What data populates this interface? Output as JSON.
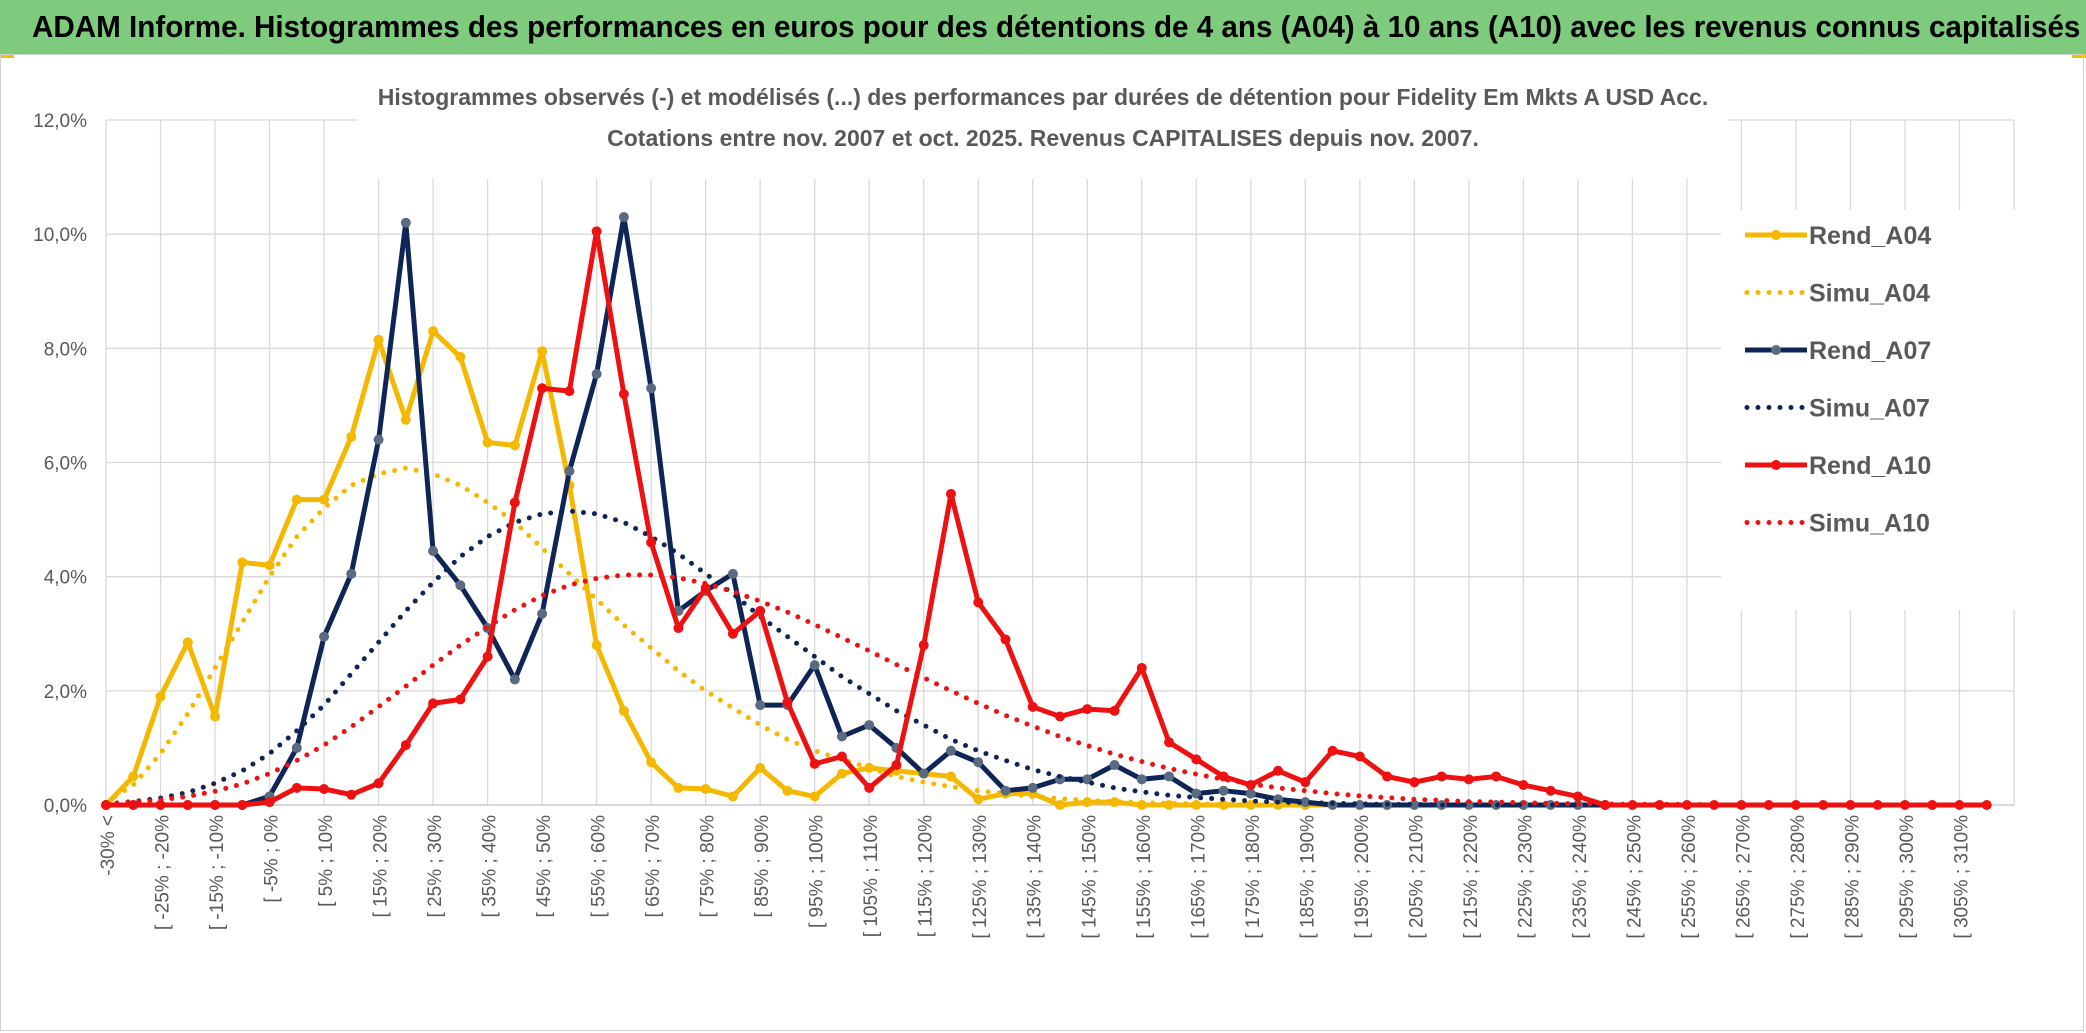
{
  "banner": {
    "title": "ADAM Informe. Histogrammes des performances en euros pour des détentions de 4 ans (A04) à 10 ans (A10) avec les revenus connus capitalisés",
    "color": "#7ecb7e"
  },
  "chart_data": {
    "type": "line",
    "title_line1": "Histogrammes observés (-) et modélisés (...) des performances par durées de détention pour Fidelity Em Mkts A USD Acc.",
    "title_line2": "Cotations entre nov. 2007 et oct. 2025. Revenus CAPITALISES depuis nov. 2007.",
    "ylim": [
      0,
      12
    ],
    "yticks": [
      "0,0%",
      "2,0%",
      "4,0%",
      "6,0%",
      "8,0%",
      "10,0%",
      "12,0%"
    ],
    "grid": true,
    "legend_position": "right",
    "x_labels": [
      "-30% <",
      "[ -25% ; -20%",
      "[ -15% ; -10%",
      "[ -5% ; 0%",
      "[ 5% ; 10%",
      "[ 15% ; 20%",
      "[ 25% ; 30%",
      "[ 35% ; 40%",
      "[ 45% ; 50%",
      "[ 55% ; 60%",
      "[ 65% ; 70%",
      "[ 75% ; 80%",
      "[ 85% ; 90%",
      "[ 95% ; 100%",
      "[ 105% ; 110%",
      "[ 115% ; 120%",
      "[ 125% ; 130%",
      "[ 135% ; 140%",
      "[ 145% ; 150%",
      "[ 155% ; 160%",
      "[ 165% ; 170%",
      "[ 175% ; 180%",
      "[ 185% ; 190%",
      "[ 195% ; 200%",
      "[ 205% ; 210%",
      "[ 215% ; 220%",
      "[ 225% ; 230%",
      "[ 235% ; 240%",
      "[ 245% ; 250%",
      "[ 255% ; 260%",
      "[ 265% ; 270%",
      "[ 275% ; 280%",
      "[ 285% ; 290%",
      "[ 295% ; 300%",
      "[ 305% ; 310%"
    ],
    "series": [
      {
        "name": "Rend_A04",
        "style": "solid",
        "color": "#f5b800",
        "values": [
          0.0,
          0.5,
          1.9,
          2.85,
          1.55,
          4.25,
          4.2,
          5.35,
          5.35,
          6.45,
          8.15,
          6.75,
          8.3,
          7.85,
          6.35,
          6.3,
          7.95,
          5.6,
          2.8,
          1.65,
          0.75,
          0.3,
          0.28,
          0.15,
          0.65,
          0.25,
          0.15,
          0.55,
          0.65,
          0.6,
          0.55,
          0.5,
          0.1,
          0.2,
          0.2,
          0.0,
          0.05,
          0.05,
          0.0,
          0.0,
          0.0,
          0.0,
          0.0,
          0.0,
          0.0,
          0.0,
          0.0,
          0.0
        ]
      },
      {
        "name": "Simu_A04",
        "style": "dotted",
        "color": "#f5b800",
        "values": [
          0.05,
          0.35,
          0.9,
          1.6,
          2.4,
          3.2,
          4.0,
          4.7,
          5.2,
          5.6,
          5.8,
          5.9,
          5.8,
          5.6,
          5.3,
          4.95,
          4.5,
          4.05,
          3.6,
          3.15,
          2.75,
          2.35,
          2.0,
          1.7,
          1.4,
          1.15,
          0.95,
          0.8,
          0.65,
          0.5,
          0.4,
          0.32,
          0.25,
          0.2,
          0.15,
          0.11,
          0.08,
          0.06,
          0.04,
          0.03,
          0.02,
          0.01,
          0.0,
          0.0,
          0.0,
          0.0,
          0.0,
          0.0,
          0.0,
          0.0,
          0.0,
          0.0
        ]
      },
      {
        "name": "Rend_A07",
        "style": "solid",
        "color": "#0f2557",
        "values": [
          0.0,
          0.0,
          0.0,
          0.0,
          0.0,
          0.0,
          0.15,
          1.0,
          2.95,
          4.05,
          6.4,
          10.2,
          4.45,
          3.85,
          3.1,
          2.2,
          3.35,
          5.85,
          7.55,
          10.3,
          7.3,
          3.4,
          3.75,
          4.05,
          1.75,
          1.75,
          2.45,
          1.2,
          1.4,
          1.0,
          0.55,
          0.95,
          0.75,
          0.25,
          0.3,
          0.45,
          0.45,
          0.7,
          0.45,
          0.5,
          0.2,
          0.25,
          0.2,
          0.1,
          0.05,
          0.0,
          0.0,
          0.0,
          0.0,
          0.0,
          0.0,
          0.0,
          0.0,
          0.0,
          0.0,
          0.0
        ]
      },
      {
        "name": "Simu_A07",
        "style": "dotted",
        "color": "#0f2557",
        "values": [
          0.02,
          0.06,
          0.12,
          0.22,
          0.38,
          0.6,
          0.9,
          1.3,
          1.75,
          2.3,
          2.85,
          3.4,
          3.9,
          4.35,
          4.7,
          4.95,
          5.1,
          5.15,
          5.1,
          4.95,
          4.7,
          4.4,
          4.05,
          3.7,
          3.3,
          2.95,
          2.6,
          2.25,
          1.95,
          1.65,
          1.4,
          1.15,
          0.95,
          0.78,
          0.62,
          0.5,
          0.4,
          0.3,
          0.23,
          0.17,
          0.13,
          0.1,
          0.07,
          0.05,
          0.04,
          0.03,
          0.02,
          0.01,
          0.01,
          0.0,
          0.0,
          0.0,
          0.0,
          0.0,
          0.0,
          0.0,
          0.0,
          0.0,
          0.0,
          0.0,
          0.0,
          0.0,
          0.0,
          0.0,
          0.0,
          0.0,
          0.0,
          0.0,
          0.0,
          0.0
        ]
      },
      {
        "name": "Rend_A10",
        "style": "solid",
        "color": "#ee1111",
        "values": [
          0.0,
          0.0,
          0.0,
          0.0,
          0.0,
          0.0,
          0.05,
          0.3,
          0.28,
          0.18,
          0.38,
          1.05,
          1.78,
          1.85,
          2.6,
          5.3,
          7.3,
          7.25,
          10.05,
          7.2,
          4.6,
          3.1,
          3.8,
          3.0,
          3.4,
          1.8,
          0.72,
          0.85,
          0.3,
          0.7,
          2.8,
          5.45,
          3.55,
          2.9,
          1.72,
          1.55,
          1.68,
          1.65,
          2.4,
          1.1,
          0.8,
          0.5,
          0.35,
          0.6,
          0.4,
          0.95,
          0.85,
          0.5,
          0.4,
          0.5,
          0.45,
          0.5,
          0.35,
          0.25,
          0.15,
          0.0,
          0.0,
          0.0,
          0.0,
          0.0,
          0.0,
          0.0,
          0.0,
          0.0,
          0.0,
          0.0,
          0.0,
          0.0,
          0.0,
          0.0
        ]
      },
      {
        "name": "Simu_A10",
        "style": "dotted",
        "color": "#ee1111",
        "values": [
          0.02,
          0.05,
          0.09,
          0.15,
          0.24,
          0.37,
          0.55,
          0.78,
          1.05,
          1.37,
          1.72,
          2.08,
          2.45,
          2.8,
          3.12,
          3.42,
          3.67,
          3.85,
          3.97,
          4.03,
          4.03,
          3.98,
          3.88,
          3.74,
          3.57,
          3.38,
          3.16,
          2.93,
          2.7,
          2.46,
          2.23,
          2.0,
          1.78,
          1.57,
          1.38,
          1.2,
          1.04,
          0.89,
          0.76,
          0.64,
          0.54,
          0.45,
          0.37,
          0.3,
          0.25,
          0.2,
          0.16,
          0.13,
          0.1,
          0.08,
          0.06,
          0.05,
          0.04,
          0.03,
          0.02,
          0.02,
          0.01,
          0.01,
          0.01,
          0.0,
          0.0,
          0.0,
          0.0,
          0.0,
          0.0,
          0.0,
          0.0,
          0.0,
          0.0,
          0.0
        ]
      }
    ]
  }
}
